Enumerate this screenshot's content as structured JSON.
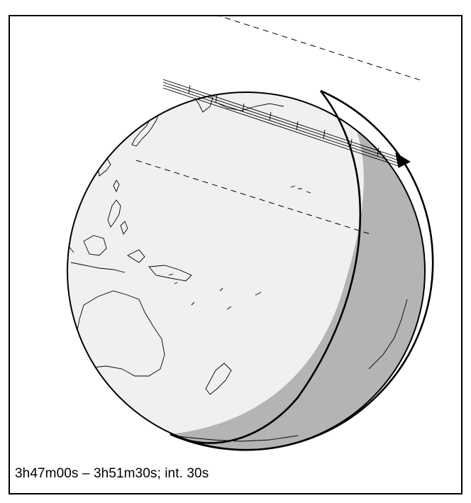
{
  "caption": "3h47m00s –  3h51m30s; int. 30s",
  "colors": {
    "day_side": "#f0f0f0",
    "night_side": "#b4b4b4",
    "outline": "#000000",
    "background": "#ffffff"
  },
  "icons": {
    "track_end": "arrowhead-icon"
  }
}
